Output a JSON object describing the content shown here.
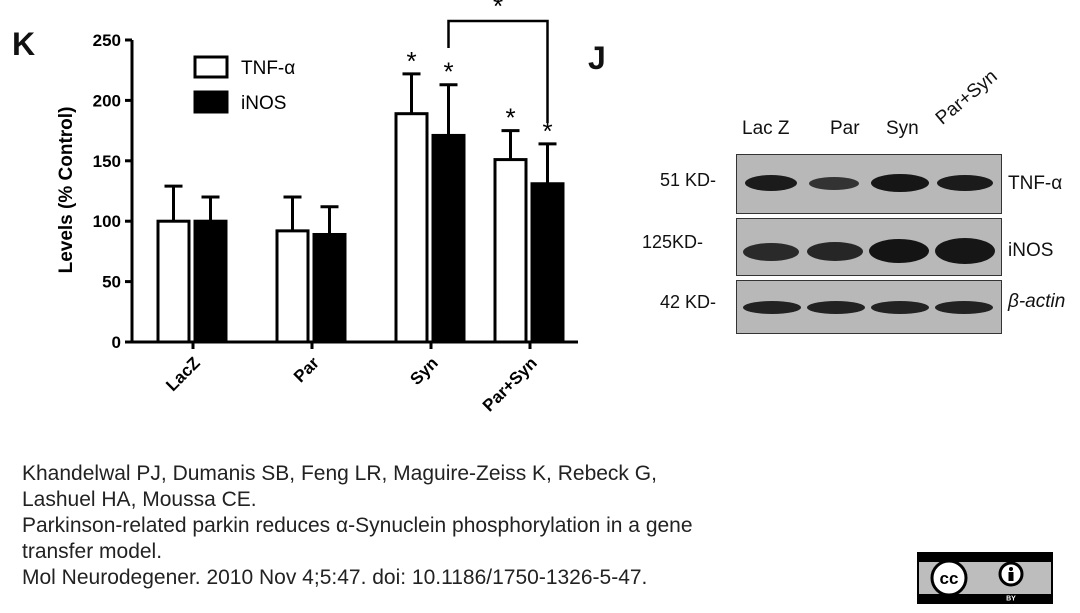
{
  "panel_k_label": "K",
  "panel_j_label": "J",
  "chart_data": {
    "type": "bar",
    "ylabel": "Levels (% Control)",
    "ylim": [
      0,
      250
    ],
    "yticks": [
      0,
      50,
      100,
      150,
      200,
      250
    ],
    "categories": [
      "LacZ",
      "Par",
      "Syn",
      "Par+Syn"
    ],
    "series": [
      {
        "name": "TNF-α",
        "color": "#ffffff",
        "values": [
          100,
          92,
          189,
          151
        ],
        "errors": [
          29,
          28,
          33,
          24
        ]
      },
      {
        "name": "iNOS",
        "color": "#000000",
        "values": [
          100,
          89,
          171,
          131
        ],
        "errors": [
          20,
          23,
          42,
          33
        ]
      }
    ],
    "significance": [
      "",
      "",
      "*",
      "*"
    ],
    "bracket_label": "*",
    "legend_position": "top-left"
  },
  "blot": {
    "lanes": [
      "Lac Z",
      "Par",
      "Syn",
      "Par+Syn"
    ],
    "rows": [
      {
        "kd": "51 KD-",
        "protein": "TNF-α"
      },
      {
        "kd": "125KD-",
        "protein": "iNOS"
      },
      {
        "kd": "42 KD-",
        "protein": "β-actin"
      }
    ]
  },
  "citation": [
    "Khandelwal PJ, Dumanis SB, Feng LR, Maguire-Zeiss K, Rebeck G,",
    "Lashuel HA, Moussa CE.",
    "Parkinson-related parkin reduces α-Synuclein phosphorylation in a gene",
    "transfer model.",
    "Mol Neurodegener. 2010 Nov 4;5:47. doi: 10.1186/1750-1326-5-47."
  ],
  "license_badge": {
    "left": "cc",
    "right": "BY"
  }
}
